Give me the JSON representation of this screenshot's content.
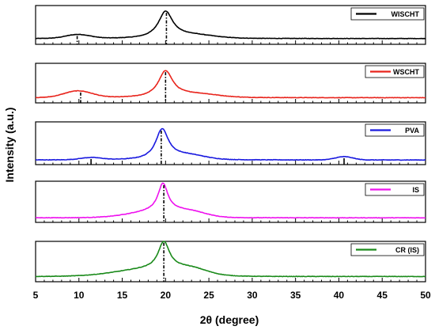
{
  "chart_data": {
    "type": "line",
    "xlabel": "2θ (degree)",
    "ylabel": "Intensity (a.u.)",
    "xlim": [
      5,
      50
    ],
    "xticks": [
      5,
      10,
      15,
      20,
      25,
      30,
      35,
      40,
      45,
      50
    ],
    "grid": false,
    "legend_placement": "top-right of each panel",
    "panels": [
      {
        "name": "WISCHT",
        "color": "#000000",
        "baseline": 0.08,
        "drift": -0.15,
        "peaks": [
          {
            "x": 9.9,
            "height": 0.12,
            "width": 1.4,
            "shape": "gauss"
          },
          {
            "x": 20.0,
            "height": 0.8,
            "width": 1.0,
            "shape": "lorentz"
          },
          {
            "x": 23.0,
            "height": 0.1,
            "width": 2.5,
            "shape": "gauss"
          }
        ],
        "markers": [
          {
            "x": 9.8,
            "style": "dashdot"
          },
          {
            "x": 20.1,
            "style": "dashdot"
          }
        ]
      },
      {
        "name": "WSCHT",
        "color": "#e8241c",
        "baseline": 0.06,
        "drift": -0.08,
        "peaks": [
          {
            "x": 9.9,
            "height": 0.2,
            "width": 1.6,
            "shape": "gauss"
          },
          {
            "x": 20.0,
            "height": 0.78,
            "width": 1.0,
            "shape": "lorentz"
          },
          {
            "x": 23.5,
            "height": 0.1,
            "width": 2.5,
            "shape": "gauss"
          }
        ],
        "markers": [
          {
            "x": 10.2,
            "style": "dashdot"
          },
          {
            "x": 20.0,
            "style": "dashdot"
          }
        ]
      },
      {
        "name": "PVA",
        "color": "#1a1adf",
        "baseline": 0.04,
        "drift": 0.0,
        "peaks": [
          {
            "x": 11.4,
            "height": 0.06,
            "width": 1.2,
            "shape": "gauss"
          },
          {
            "x": 19.6,
            "height": 0.82,
            "width": 0.9,
            "shape": "lorentz"
          },
          {
            "x": 22.5,
            "height": 0.12,
            "width": 2.0,
            "shape": "gauss"
          },
          {
            "x": 40.6,
            "height": 0.09,
            "width": 1.0,
            "shape": "gauss"
          }
        ],
        "markers": [
          {
            "x": 11.4,
            "style": "solid"
          },
          {
            "x": 19.5,
            "style": "dashdot"
          },
          {
            "x": 40.6,
            "style": "solid"
          }
        ]
      },
      {
        "name": "IS",
        "color": "#ee12ee",
        "baseline": 0.04,
        "drift": 0.0,
        "peaks": [
          {
            "x": 19.7,
            "height": 0.8,
            "width": 0.7,
            "shape": "lorentz"
          },
          {
            "x": 19.0,
            "height": 0.18,
            "width": 3.0,
            "shape": "gauss"
          },
          {
            "x": 23.0,
            "height": 0.12,
            "width": 1.8,
            "shape": "gauss"
          }
        ],
        "markers": [
          {
            "x": 19.8,
            "style": "dashdot"
          }
        ]
      },
      {
        "name": "CR (IS)",
        "color": "#1a8a1a",
        "baseline": 0.06,
        "drift": 0.0,
        "peaks": [
          {
            "x": 19.8,
            "height": 0.8,
            "width": 0.8,
            "shape": "lorentz"
          },
          {
            "x": 18.5,
            "height": 0.22,
            "width": 4.0,
            "shape": "gauss"
          },
          {
            "x": 23.0,
            "height": 0.14,
            "width": 1.8,
            "shape": "gauss"
          }
        ],
        "markers": [
          {
            "x": 19.8,
            "style": "dashdot"
          }
        ]
      }
    ]
  }
}
